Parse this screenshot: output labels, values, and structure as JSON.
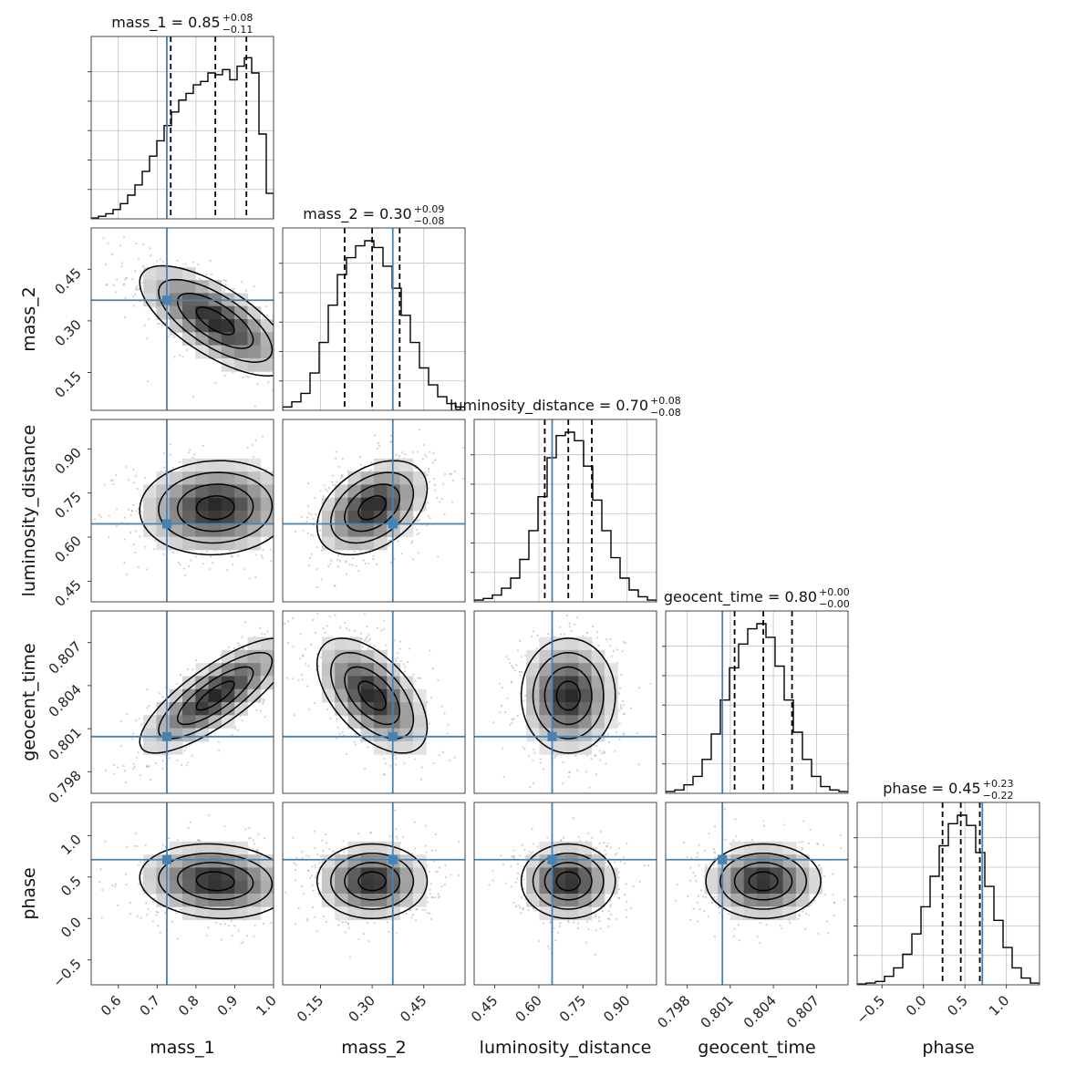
{
  "chart_data": {
    "type": "corner",
    "colors": {
      "truth": "#4682b4",
      "hist": "#000000",
      "grid": "#c0c0c0",
      "frame": "#444444"
    },
    "params": [
      {
        "name": "mass_1",
        "range": [
          0.53,
          1.0
        ],
        "ticks": [
          "0.6",
          "0.7",
          "0.8",
          "0.9",
          "1.0"
        ],
        "tick_values": [
          0.6,
          0.7,
          0.8,
          0.9,
          1.0
        ],
        "truth": 0.725,
        "median": "0.85",
        "plus": "+0.08",
        "minus": "−0.11",
        "quantiles": [
          0.735,
          0.85,
          0.93
        ]
      },
      {
        "name": "mass_2",
        "range": [
          0.04,
          0.57
        ],
        "ticks": [
          "0.15",
          "0.30",
          "0.45"
        ],
        "tick_values": [
          0.15,
          0.3,
          0.45
        ],
        "truth": 0.36,
        "median": "0.30",
        "plus": "+0.09",
        "minus": "−0.08",
        "quantiles": [
          0.22,
          0.3,
          0.38
        ]
      },
      {
        "name": "luminosity_distance",
        "range": [
          0.38,
          1.0
        ],
        "ticks": [
          "0.45",
          "0.60",
          "0.75",
          "0.90"
        ],
        "tick_values": [
          0.45,
          0.6,
          0.75,
          0.9
        ],
        "truth": 0.645,
        "median": "0.70",
        "plus": "+0.08",
        "minus": "−0.08",
        "quantiles": [
          0.62,
          0.7,
          0.78
        ]
      },
      {
        "name": "geocent_time",
        "range": [
          0.7965,
          0.8092
        ],
        "ticks": [
          "0.798",
          "0.801",
          "0.804",
          "0.807"
        ],
        "tick_values": [
          0.798,
          0.801,
          0.804,
          0.807
        ],
        "truth": 0.80045,
        "median": "0.80",
        "plus": "+0.00",
        "minus": "−0.00",
        "quantiles": [
          0.8013,
          0.8033,
          0.8053
        ]
      },
      {
        "name": "phase",
        "range": [
          -0.8,
          1.4
        ],
        "ticks": [
          "−0.5",
          "0.0",
          "0.5",
          "1.0"
        ],
        "tick_values": [
          -0.5,
          0.0,
          0.5,
          1.0
        ],
        "truth": 0.71,
        "median": "0.45",
        "plus": "+0.23",
        "minus": "−0.22",
        "quantiles": [
          0.23,
          0.45,
          0.68
        ]
      }
    ],
    "histograms": [
      [
        0.005,
        0.015,
        0.03,
        0.055,
        0.09,
        0.14,
        0.2,
        0.28,
        0.37,
        0.46,
        0.55,
        0.63,
        0.7,
        0.74,
        0.79,
        0.81,
        0.86,
        0.85,
        0.88,
        0.82,
        0.9,
        0.95,
        0.86,
        0.5,
        0.15
      ],
      [
        0.02,
        0.05,
        0.1,
        0.22,
        0.4,
        0.62,
        0.8,
        0.9,
        0.97,
        1.0,
        0.96,
        0.85,
        0.72,
        0.56,
        0.4,
        0.25,
        0.15,
        0.08,
        0.04,
        0.02
      ],
      [
        0.01,
        0.02,
        0.04,
        0.08,
        0.14,
        0.25,
        0.42,
        0.62,
        0.85,
        0.98,
        1.0,
        0.95,
        0.8,
        0.6,
        0.42,
        0.26,
        0.14,
        0.07,
        0.03,
        0.01
      ],
      [
        0.01,
        0.02,
        0.05,
        0.1,
        0.2,
        0.35,
        0.55,
        0.74,
        0.88,
        0.97,
        1.0,
        0.92,
        0.75,
        0.55,
        0.36,
        0.2,
        0.1,
        0.04,
        0.02,
        0.01
      ],
      [
        0.005,
        0.01,
        0.02,
        0.05,
        0.1,
        0.18,
        0.3,
        0.46,
        0.64,
        0.82,
        0.95,
        1.0,
        0.94,
        0.78,
        0.58,
        0.38,
        0.22,
        0.1,
        0.04,
        0.01
      ]
    ],
    "correlations": [
      [
        0,
        -0.7,
        0.05,
        0.8,
        -0.1
      ],
      [
        -0.7,
        0,
        0.4,
        -0.55,
        0.0
      ],
      [
        0.05,
        0.4,
        0,
        0.0,
        0.0
      ],
      [
        0.8,
        -0.55,
        0.0,
        0,
        0.0
      ],
      [
        -0.1,
        0.0,
        0.0,
        0.0,
        0
      ]
    ]
  }
}
